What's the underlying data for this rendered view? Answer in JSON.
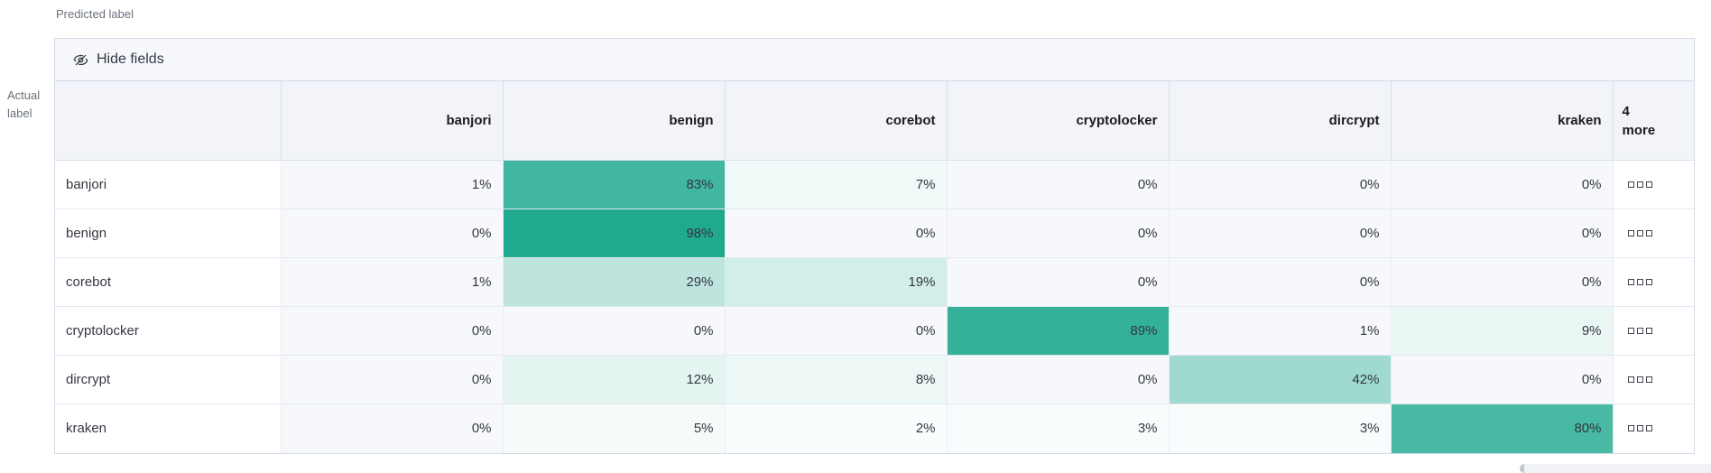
{
  "axis": {
    "predicted_label": "Predicted label",
    "actual_label_line1": "Actual",
    "actual_label_line2": "label"
  },
  "toolbar": {
    "hide_fields_label": "Hide fields",
    "hide_fields_icon": "eye-closed-icon"
  },
  "matrix": {
    "columns": [
      "banjori",
      "benign",
      "corebot",
      "cryptolocker",
      "dircrypt",
      "kraken"
    ],
    "more_column": {
      "line1": "4",
      "line2": "more",
      "cell_icon": "boxes-horizontal-icon"
    },
    "rows": [
      {
        "label": "banjori",
        "values": [
          1,
          83,
          7,
          0,
          0,
          0
        ]
      },
      {
        "label": "benign",
        "values": [
          0,
          98,
          0,
          0,
          0,
          0
        ]
      },
      {
        "label": "corebot",
        "values": [
          1,
          29,
          19,
          0,
          0,
          0
        ]
      },
      {
        "label": "cryptolocker",
        "values": [
          0,
          0,
          0,
          89,
          1,
          9
        ]
      },
      {
        "label": "dircrypt",
        "values": [
          0,
          12,
          8,
          0,
          42,
          0
        ]
      },
      {
        "label": "kraken",
        "values": [
          0,
          5,
          2,
          3,
          3,
          80
        ]
      }
    ],
    "value_suffix": "%"
  },
  "colors": {
    "heat_base": "#1aa78c",
    "cell_zero_bg": "#f7f8fc",
    "header_bg": "#f2f4f9",
    "toolbar_bg": "#f6f8fc",
    "border": "#d3dae6"
  },
  "chart_data": {
    "type": "heatmap",
    "title": "Confusion matrix",
    "x_categories": [
      "banjori",
      "benign",
      "corebot",
      "cryptolocker",
      "dircrypt",
      "kraken"
    ],
    "y_categories": [
      "banjori",
      "benign",
      "corebot",
      "cryptolocker",
      "dircrypt",
      "kraken"
    ],
    "xlabel": "Predicted label",
    "ylabel": "Actual label",
    "values_percent": [
      [
        1,
        83,
        7,
        0,
        0,
        0
      ],
      [
        0,
        98,
        0,
        0,
        0,
        0
      ],
      [
        1,
        29,
        19,
        0,
        0,
        0
      ],
      [
        0,
        0,
        0,
        89,
        1,
        9
      ],
      [
        0,
        12,
        8,
        0,
        42,
        0
      ],
      [
        0,
        5,
        2,
        3,
        3,
        80
      ]
    ],
    "hidden_columns_note": "4 more"
  }
}
